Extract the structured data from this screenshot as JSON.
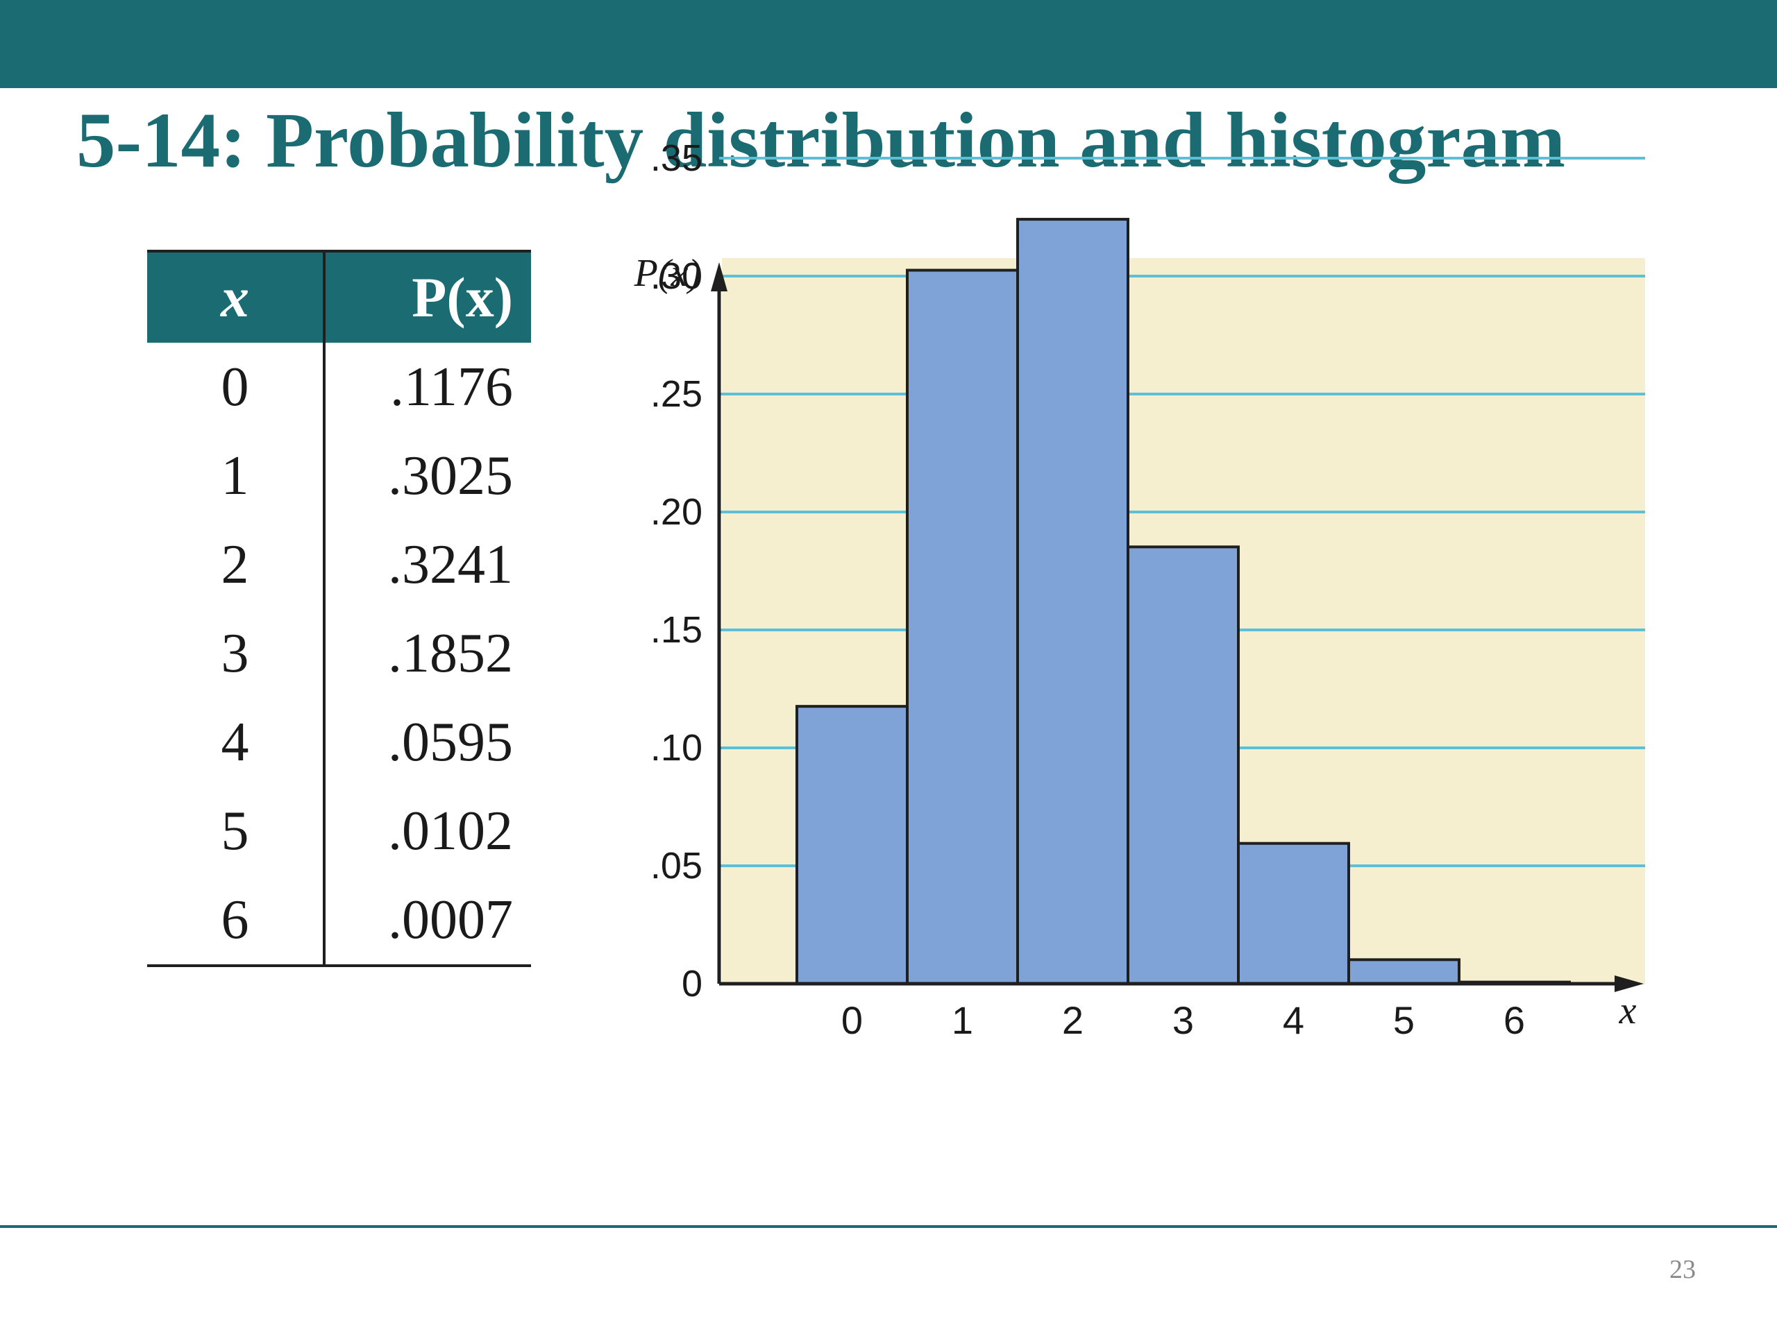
{
  "slide": {
    "title": "5-14: Probability distribution and histogram",
    "page_number": "23"
  },
  "table": {
    "headers": {
      "x": "x",
      "p": "P(x)"
    },
    "rows": [
      {
        "x": "0",
        "p": ".1176"
      },
      {
        "x": "1",
        "p": ".3025"
      },
      {
        "x": "2",
        "p": ".3241"
      },
      {
        "x": "3",
        "p": ".1852"
      },
      {
        "x": "4",
        "p": ".0595"
      },
      {
        "x": "5",
        "p": ".0102"
      },
      {
        "x": "6",
        "p": ".0007"
      }
    ]
  },
  "colors": {
    "header": "#1b6b73",
    "plot_background": "#f5efcf",
    "gridline": "#5bc0d8",
    "bar_fill": "#7fa3d6",
    "bar_stroke": "#1f1f1f"
  },
  "chart_data": {
    "type": "bar",
    "categories": [
      "0",
      "1",
      "2",
      "3",
      "4",
      "5",
      "6"
    ],
    "values": [
      0.1176,
      0.3025,
      0.3241,
      0.1852,
      0.0595,
      0.0102,
      0.0007
    ],
    "title": "",
    "xlabel": "x",
    "ylabel": "P(x)",
    "ylim": [
      0,
      0.35
    ],
    "yticks": [
      {
        "value": 0,
        "label": "0"
      },
      {
        "value": 0.05,
        "label": ".05"
      },
      {
        "value": 0.1,
        "label": ".10"
      },
      {
        "value": 0.15,
        "label": ".15"
      },
      {
        "value": 0.2,
        "label": ".20"
      },
      {
        "value": 0.25,
        "label": ".25"
      },
      {
        "value": 0.3,
        "label": ".30"
      },
      {
        "value": 0.35,
        "label": ".35"
      }
    ],
    "grid": true,
    "legend": "none"
  }
}
